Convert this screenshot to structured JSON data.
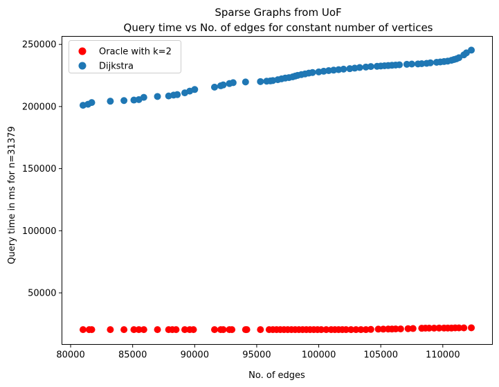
{
  "chart_data": {
    "type": "scatter",
    "title": "Sparse Graphs from UoF",
    "subtitle": "Query time vs No. of edges for constant number of vertices",
    "xlabel": "No. of edges",
    "ylabel": "Query time in ms for n=31379",
    "xlim": [
      79300,
      114000
    ],
    "ylim": [
      8500,
      256500
    ],
    "xticks": [
      80000,
      85000,
      90000,
      95000,
      100000,
      105000,
      110000
    ],
    "yticks": [
      50000,
      100000,
      150000,
      200000,
      250000
    ],
    "xtick_labels": [
      "80000",
      "85000",
      "90000",
      "95000",
      "100000",
      "105000",
      "110000"
    ],
    "ytick_labels": [
      "50000",
      "100000",
      "150000",
      "200000",
      "250000"
    ],
    "grid": false,
    "legend_position": "top-left",
    "series": [
      {
        "name": "Oracle with k=2",
        "color": "#ff0000",
        "x": [
          81000,
          81500,
          81700,
          83200,
          84300,
          85100,
          85500,
          85900,
          87000,
          87900,
          88200,
          88500,
          89200,
          89600,
          89900,
          91600,
          92100,
          92300,
          92800,
          93000,
          94100,
          94200,
          95300,
          96000,
          96300,
          96600,
          96900,
          97200,
          97500,
          97800,
          98100,
          98400,
          98700,
          99000,
          99300,
          99600,
          99900,
          100200,
          100600,
          101000,
          101300,
          101600,
          101900,
          102200,
          102600,
          103000,
          103400,
          103800,
          104200,
          104800,
          105200,
          105600,
          105900,
          106200,
          106600,
          107200,
          107600,
          108300,
          108600,
          108900,
          109300,
          109700,
          110100,
          110400,
          110700,
          111000,
          111300,
          111700,
          112300
        ],
        "y": [
          20400,
          20400,
          20400,
          20400,
          20400,
          20400,
          20400,
          20400,
          20400,
          20400,
          20400,
          20400,
          20400,
          20400,
          20400,
          20400,
          20400,
          20400,
          20400,
          20400,
          20400,
          20400,
          20400,
          20400,
          20400,
          20400,
          20400,
          20400,
          20400,
          20400,
          20400,
          20400,
          20400,
          20400,
          20400,
          20400,
          20400,
          20400,
          20400,
          20400,
          20400,
          20400,
          20400,
          20400,
          20400,
          20400,
          20400,
          20400,
          20600,
          20800,
          20800,
          20900,
          20900,
          21000,
          21000,
          21200,
          21300,
          21500,
          21600,
          21600,
          21600,
          21700,
          21700,
          21700,
          21700,
          21800,
          21800,
          21800,
          21900
        ]
      },
      {
        "name": "Dijkstra",
        "color": "#1f77b4",
        "x": [
          81000,
          81400,
          81700,
          83200,
          84300,
          85100,
          85500,
          85900,
          87000,
          87900,
          88300,
          88600,
          89200,
          89600,
          90000,
          91600,
          92100,
          92300,
          92800,
          93100,
          94100,
          95300,
          95800,
          96100,
          96300,
          96700,
          97000,
          97300,
          97600,
          97900,
          98100,
          98300,
          98600,
          98900,
          99200,
          99500,
          100000,
          100400,
          100800,
          101200,
          101600,
          102000,
          102500,
          102900,
          103300,
          103800,
          104200,
          104700,
          105000,
          105300,
          105600,
          105900,
          106200,
          106500,
          107100,
          107500,
          108000,
          108300,
          108700,
          109000,
          109500,
          109800,
          110100,
          110400,
          110700,
          110900,
          111100,
          111300,
          111700,
          111900,
          112300
        ],
        "y": [
          201000,
          201800,
          203200,
          204300,
          204800,
          205200,
          205600,
          207400,
          208100,
          208500,
          209200,
          209600,
          211000,
          212400,
          213700,
          215600,
          216700,
          217400,
          218500,
          219200,
          219800,
          220100,
          220400,
          220600,
          220900,
          221600,
          222300,
          222900,
          223300,
          223900,
          224500,
          225100,
          225700,
          226300,
          226900,
          227400,
          227900,
          228400,
          228900,
          229300,
          229700,
          230100,
          230500,
          230900,
          231400,
          231800,
          232200,
          232400,
          232600,
          232800,
          233000,
          233200,
          233400,
          233600,
          234000,
          234200,
          234300,
          234500,
          234800,
          235200,
          235600,
          235900,
          236200,
          236600,
          237200,
          237800,
          238400,
          239300,
          241600,
          243200,
          245400
        ]
      }
    ]
  }
}
